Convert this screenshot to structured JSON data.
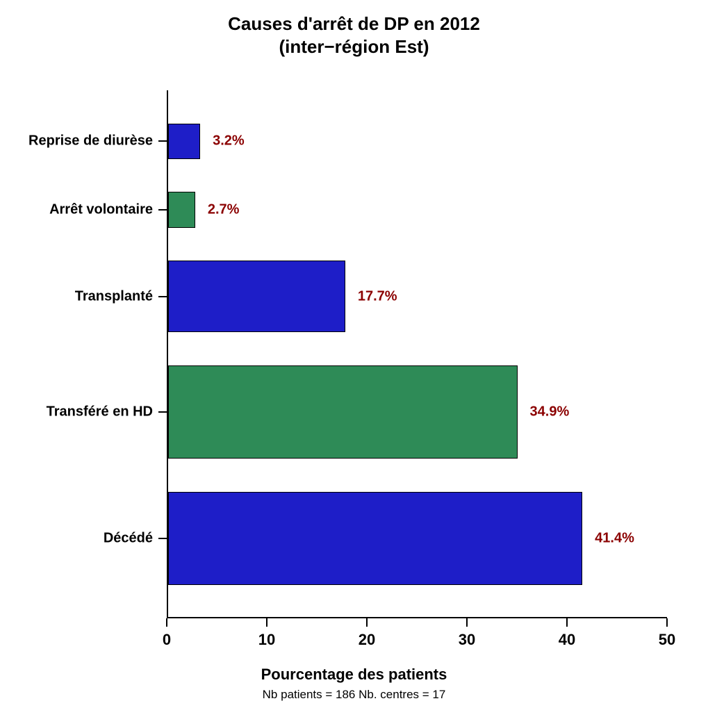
{
  "chart": {
    "type": "bar-horizontal",
    "title_line1": "Causes d'arrêt de DP en 2012",
    "title_line2": "(inter−région Est)",
    "title_fontsize": 26,
    "x_axis_title": "Pourcentage des patients",
    "x_axis_title_fontsize": 22,
    "footer_text": "Nb patients =  186     Nb. centres =  17",
    "footer_fontsize": 17,
    "xlim": [
      0,
      50
    ],
    "x_ticks": [
      0,
      10,
      20,
      30,
      40,
      50
    ],
    "tick_label_fontsize": 22,
    "category_label_fontsize": 20,
    "value_label_fontsize": 20,
    "value_label_color": "#8b0000",
    "axis_color": "#000000",
    "background_color": "#ffffff",
    "categories": [
      {
        "label": "Reprise de diurèse",
        "value": 3.2,
        "value_label": "3.2%",
        "color": "#1e1ec8"
      },
      {
        "label": "Arrêt volontaire",
        "value": 2.7,
        "value_label": "2.7%",
        "color": "#2e8b57"
      },
      {
        "label": "Transplanté",
        "value": 17.7,
        "value_label": "17.7%",
        "color": "#1e1ec8"
      },
      {
        "label": "Transféré en HD",
        "value": 34.9,
        "value_label": "34.9%",
        "color": "#2e8b57"
      },
      {
        "label": "Décédé",
        "value": 41.4,
        "value_label": "41.4%",
        "color": "#1e1ec8"
      }
    ],
    "bar_heights_proportion": [
      0.065,
      0.065,
      0.13,
      0.17,
      0.17
    ],
    "bar_gap_proportion": 0.06
  }
}
